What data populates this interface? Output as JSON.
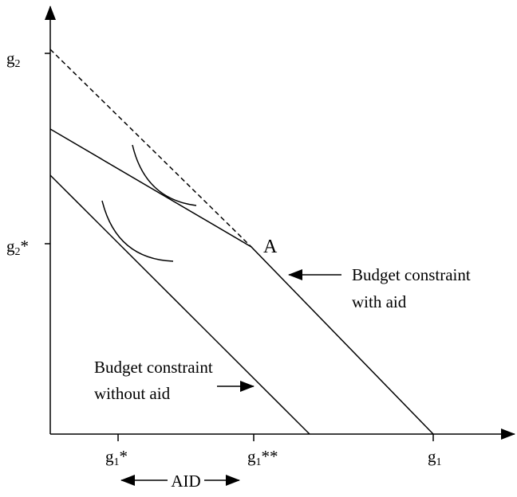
{
  "y_axis_labels": [
    {
      "base": "g",
      "sub": "2",
      "suffix": ""
    },
    {
      "base": "g",
      "sub": "2",
      "suffix": "*"
    }
  ],
  "x_axis_labels": [
    {
      "base": "g",
      "sub": "1",
      "suffix": "*"
    },
    {
      "base": "g",
      "sub": "1",
      "suffix": "**"
    },
    {
      "base": "g",
      "sub": "1",
      "suffix": ""
    }
  ],
  "point_label": "A",
  "with_aid_label": [
    "Budget constraint",
    "with aid"
  ],
  "without_aid_label": [
    "Budget constraint",
    "without aid"
  ],
  "aid_label": "AID"
}
